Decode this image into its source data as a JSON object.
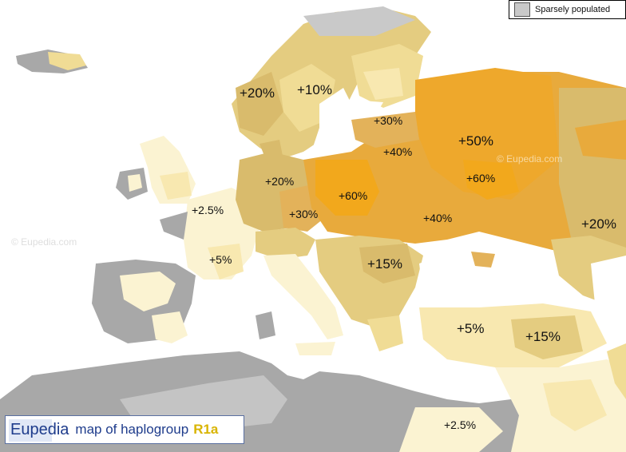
{
  "legend": {
    "label": "Sparsely populated",
    "color": "#c9c9c9"
  },
  "title": {
    "brand": "Eupedia",
    "text": "map of haplogroup",
    "haplogroup": "R1a"
  },
  "watermark": "© Eupedia.com",
  "colors": {
    "sea": "#ffffff",
    "land_gray": "#a8a8a8",
    "sparse": "#c9c9c9",
    "c2_5": "#fbf3d2",
    "c5": "#f8e8b0",
    "c10": "#f0dc95",
    "c15": "#e4cc80",
    "c20": "#d9bb6c",
    "c30": "#e3b25a",
    "c40": "#e8aa3c",
    "c50": "#eea82c",
    "c60": "#f2a81c"
  },
  "region_labels": [
    "+20%",
    "+10%",
    "+30%",
    "+40%",
    "+50%",
    "+20%",
    "+60%",
    "+60%",
    "+2.5%",
    "+30%",
    "+40%",
    "+20%",
    "+5%",
    "+15%",
    "+5%",
    "+15%",
    "+2.5%"
  ]
}
